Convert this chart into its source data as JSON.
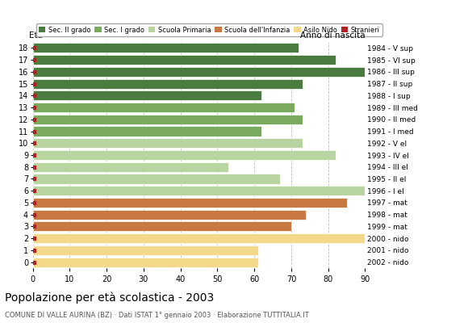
{
  "ages": [
    18,
    17,
    16,
    15,
    14,
    13,
    12,
    11,
    10,
    9,
    8,
    7,
    6,
    5,
    4,
    3,
    2,
    1,
    0
  ],
  "years": [
    "1984 - V sup",
    "1985 - VI sup",
    "1986 - III sup",
    "1987 - II sup",
    "1988 - I sup",
    "1989 - III med",
    "1990 - II med",
    "1991 - I med",
    "1992 - V el",
    "1993 - IV el",
    "1994 - III el",
    "1995 - II el",
    "1996 - I el",
    "1997 - mat",
    "1998 - mat",
    "1999 - mat",
    "2000 - nido",
    "2001 - nido",
    "2002 - nido"
  ],
  "values": [
    72,
    82,
    90,
    73,
    62,
    71,
    73,
    62,
    73,
    82,
    53,
    67,
    90,
    85,
    74,
    70,
    90,
    61,
    61
  ],
  "stranieri_vals": [
    1,
    1,
    2,
    1,
    1,
    1,
    1,
    1,
    1,
    2,
    1,
    2,
    1,
    2,
    2,
    1,
    1,
    1,
    1
  ],
  "categories": {
    "sec2": [
      14,
      15,
      16,
      17,
      18
    ],
    "sec1": [
      11,
      12,
      13
    ],
    "primaria": [
      6,
      7,
      8,
      9,
      10
    ],
    "infanzia": [
      3,
      4,
      5
    ],
    "nido": [
      0,
      1,
      2
    ]
  },
  "colors": {
    "sec2": "#4a7c3f",
    "sec1": "#7aaa5e",
    "primaria": "#b8d4a0",
    "infanzia": "#c87941",
    "nido": "#f5d98b",
    "stranieri": "#b22222"
  },
  "title": "Popolazione per età scolastica - 2003",
  "subtitle": "COMUNE DI VALLE AURINA (BZ) · Dati ISTAT 1° gennaio 2003 · Elaborazione TUTTITALIA.IT",
  "ylabel_left": "Età",
  "ylabel_right": "Anno di nascita",
  "xlim": [
    0,
    90
  ],
  "xticks": [
    0,
    10,
    20,
    30,
    40,
    50,
    60,
    70,
    80,
    90
  ],
  "background_color": "#ffffff",
  "grid_color": "#bbbbbb"
}
